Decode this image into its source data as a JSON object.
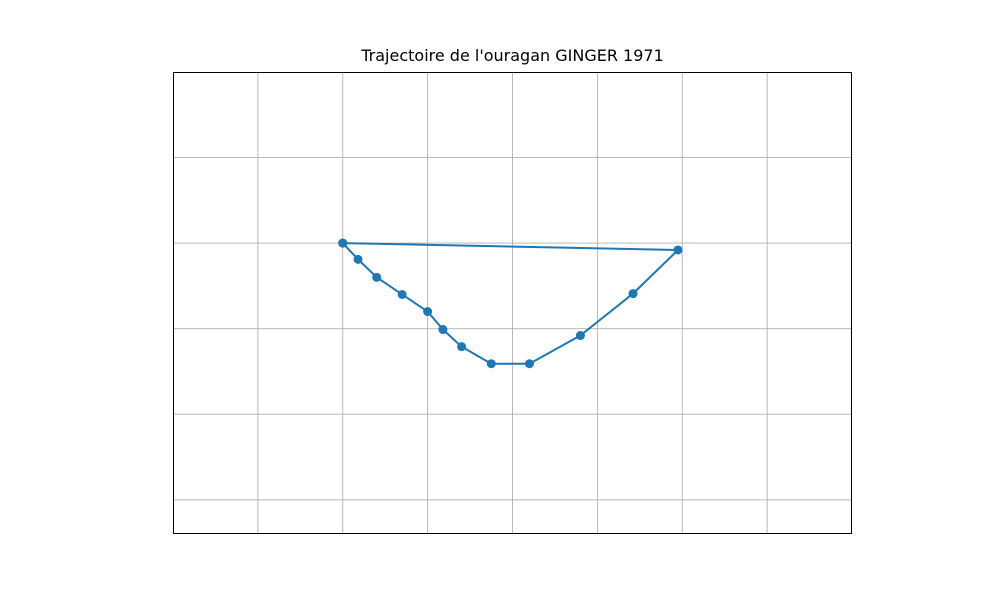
{
  "chart_data": {
    "type": "line",
    "title": "Trajectoire de l'ouragan GINGER 1971",
    "xlabel": "",
    "ylabel": "",
    "xlim": [
      0,
      8
    ],
    "ylim": [
      -0.4,
      5.0
    ],
    "grid": true,
    "series": [
      {
        "color": "#1f77b4",
        "marker": "circle",
        "points": [
          [
            2.0,
            3.0
          ],
          [
            2.18,
            2.81
          ],
          [
            2.4,
            2.6
          ],
          [
            2.7,
            2.4
          ],
          [
            3.0,
            2.2
          ],
          [
            3.18,
            1.99
          ],
          [
            3.4,
            1.79
          ],
          [
            3.75,
            1.59
          ],
          [
            4.2,
            1.59
          ],
          [
            4.8,
            1.92
          ],
          [
            5.42,
            2.41
          ],
          [
            5.95,
            2.92
          ],
          [
            2.0,
            3.0
          ]
        ]
      }
    ]
  },
  "colors": {
    "line": "#1f77b4",
    "grid": "#b0b0b0",
    "axes": "#000000"
  }
}
